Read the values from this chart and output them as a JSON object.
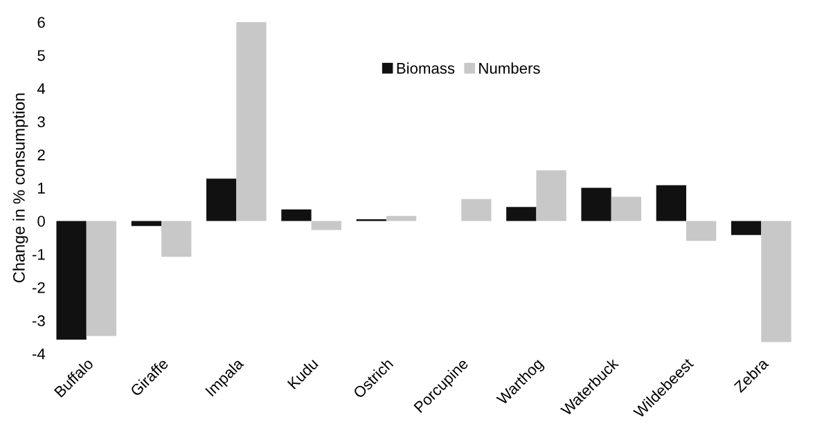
{
  "chart_data": {
    "type": "bar",
    "ylabel": "Change in % consumption",
    "categories": [
      "Buffalo",
      "Giraffe",
      "Impala",
      "Kudu",
      "Ostrich",
      "Porcupine",
      "Warthog",
      "Waterbuck",
      "Wildebeest",
      "Zebra"
    ],
    "series": [
      {
        "name": "Biomass",
        "color": "#111111",
        "values": [
          -3.58,
          -0.15,
          1.28,
          0.35,
          0.05,
          0.0,
          0.42,
          1.0,
          1.08,
          -0.42
        ]
      },
      {
        "name": "Numbers",
        "color": "#c8c8c8",
        "values": [
          -3.47,
          -1.08,
          6.0,
          -0.27,
          0.15,
          0.66,
          1.53,
          0.73,
          -0.6,
          -3.65
        ]
      }
    ],
    "ylim": [
      -4,
      6
    ],
    "yticks": [
      -4,
      -3,
      -2,
      -1,
      0,
      1,
      2,
      3,
      4,
      5,
      6
    ],
    "grid": false,
    "legend": "top"
  }
}
